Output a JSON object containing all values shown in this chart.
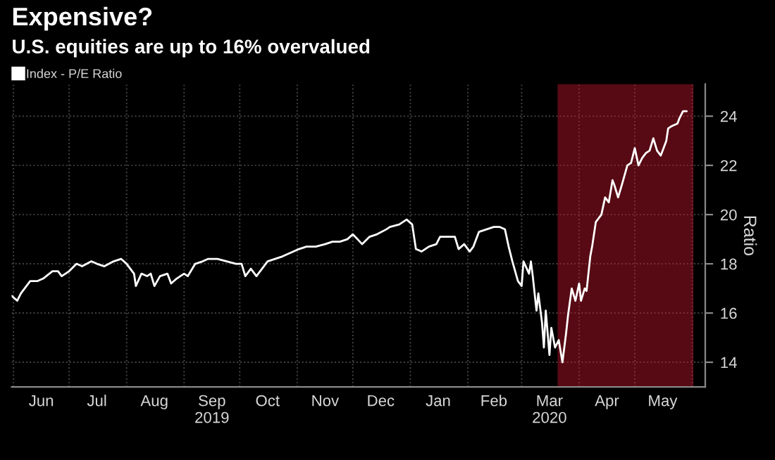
{
  "chart_data": {
    "type": "line",
    "title": "Expensive?",
    "subtitle": "U.S. equities are up to 16% overvalued",
    "ylabel": "Ratio",
    "x": [
      "2019-05-31",
      "2019-06-03",
      "2019-06-05",
      "2019-06-10",
      "2019-06-14",
      "2019-06-17",
      "2019-06-22",
      "2019-06-25",
      "2019-06-27",
      "2019-07-01",
      "2019-07-05",
      "2019-07-08",
      "2019-07-13",
      "2019-07-16",
      "2019-07-20",
      "2019-07-25",
      "2019-07-29",
      "2019-08-01",
      "2019-08-05",
      "2019-08-06",
      "2019-08-09",
      "2019-08-12",
      "2019-08-14",
      "2019-08-16",
      "2019-08-19",
      "2019-08-23",
      "2019-08-25",
      "2019-08-28",
      "2019-09-01",
      "2019-09-03",
      "2019-09-07",
      "2019-09-11",
      "2019-09-14",
      "2019-09-19",
      "2019-09-24",
      "2019-09-29",
      "2019-10-02",
      "2019-10-04",
      "2019-10-07",
      "2019-10-10",
      "2019-10-13",
      "2019-10-16",
      "2019-10-20",
      "2019-10-24",
      "2019-10-27",
      "2019-11-02",
      "2019-11-06",
      "2019-11-11",
      "2019-11-16",
      "2019-11-20",
      "2019-11-24",
      "2019-11-28",
      "2019-12-01",
      "2019-12-06",
      "2019-12-10",
      "2019-12-14",
      "2019-12-19",
      "2019-12-21",
      "2019-12-26",
      "2019-12-30",
      "2020-01-02",
      "2020-01-04",
      "2020-01-07",
      "2020-01-11",
      "2020-01-15",
      "2020-01-17",
      "2020-01-21",
      "2020-01-25",
      "2020-01-27",
      "2020-01-30",
      "2020-02-02",
      "2020-02-04",
      "2020-02-07",
      "2020-02-11",
      "2020-02-15",
      "2020-02-18",
      "2020-02-21",
      "2020-02-23",
      "2020-02-25",
      "2020-02-28",
      "2020-03-01",
      "2020-03-02",
      "2020-03-05",
      "2020-03-06",
      "2020-03-07",
      "2020-03-09",
      "2020-03-10",
      "2020-03-12",
      "2020-03-13",
      "2020-03-14",
      "2020-03-16",
      "2020-03-17",
      "2020-03-19",
      "2020-03-21",
      "2020-03-23",
      "2020-03-25",
      "2020-03-26",
      "2020-03-28",
      "2020-03-30",
      "2020-04-01",
      "2020-04-02",
      "2020-04-04",
      "2020-04-05",
      "2020-04-07",
      "2020-04-08",
      "2020-04-10",
      "2020-04-13",
      "2020-04-15",
      "2020-04-17",
      "2020-04-19",
      "2020-04-20",
      "2020-04-22",
      "2020-04-24",
      "2020-04-27",
      "2020-04-29",
      "2020-05-01",
      "2020-05-03",
      "2020-05-05",
      "2020-05-07",
      "2020-05-09",
      "2020-05-11",
      "2020-05-13",
      "2020-05-15",
      "2020-05-18",
      "2020-05-19",
      "2020-05-21",
      "2020-05-24",
      "2020-05-25",
      "2020-05-27",
      "2020-05-29"
    ],
    "series": [
      {
        "name": "Index - P/E Ratio",
        "color": "#ffffff",
        "values": [
          16.7,
          16.5,
          16.8,
          17.3,
          17.3,
          17.4,
          17.7,
          17.7,
          17.5,
          17.7,
          18.0,
          17.9,
          18.1,
          18.0,
          17.9,
          18.1,
          18.2,
          18.0,
          17.6,
          17.1,
          17.6,
          17.5,
          17.6,
          17.1,
          17.5,
          17.6,
          17.2,
          17.4,
          17.6,
          17.5,
          18.0,
          18.1,
          18.2,
          18.2,
          18.1,
          18.0,
          18.0,
          17.5,
          17.8,
          17.5,
          17.8,
          18.1,
          18.2,
          18.3,
          18.4,
          18.6,
          18.7,
          18.7,
          18.8,
          18.9,
          18.9,
          19.0,
          19.2,
          18.8,
          19.1,
          19.2,
          19.4,
          19.5,
          19.6,
          19.8,
          19.6,
          18.6,
          18.5,
          18.7,
          18.8,
          19.1,
          19.1,
          19.1,
          18.6,
          18.8,
          18.5,
          18.7,
          19.3,
          19.4,
          19.5,
          19.5,
          19.4,
          18.7,
          18.1,
          17.3,
          17.1,
          18.1,
          17.6,
          18.1,
          17.5,
          16.1,
          16.8,
          15.6,
          14.6,
          16.1,
          14.3,
          15.4,
          14.6,
          14.9,
          14.0,
          15.2,
          15.9,
          17.0,
          16.5,
          17.2,
          16.5,
          17.0,
          16.9,
          18.3,
          18.7,
          19.7,
          20.0,
          20.7,
          20.5,
          21.4,
          21.2,
          20.7,
          21.2,
          22.0,
          22.1,
          22.7,
          22.0,
          22.3,
          22.5,
          22.6,
          23.1,
          22.6,
          22.4,
          23.0,
          23.5,
          23.6,
          23.7,
          23.9,
          24.2,
          24.2
        ]
      }
    ],
    "xlim": [
      "2019-05-31",
      "2020-06-08"
    ],
    "xticks": [
      {
        "value": "2019-06-01",
        "label": null
      },
      {
        "value": "2019-06-16",
        "label": "Jun"
      },
      {
        "value": "2019-07-01",
        "label": null
      },
      {
        "value": "2019-07-16",
        "label": "Jul"
      },
      {
        "value": "2019-08-01",
        "label": null
      },
      {
        "value": "2019-08-16",
        "label": "Aug"
      },
      {
        "value": "2019-09-01",
        "label": null
      },
      {
        "value": "2019-09-16",
        "label": "Sep\n2019"
      },
      {
        "value": "2019-10-01",
        "label": null
      },
      {
        "value": "2019-10-16",
        "label": "Oct"
      },
      {
        "value": "2019-11-01",
        "label": null
      },
      {
        "value": "2019-11-16",
        "label": "Nov"
      },
      {
        "value": "2019-12-01",
        "label": null
      },
      {
        "value": "2019-12-16",
        "label": "Dec"
      },
      {
        "value": "2020-01-01",
        "label": null
      },
      {
        "value": "2020-01-16",
        "label": "Jan"
      },
      {
        "value": "2020-02-01",
        "label": null
      },
      {
        "value": "2020-02-15",
        "label": "Feb"
      },
      {
        "value": "2020-03-01",
        "label": null
      },
      {
        "value": "2020-03-16",
        "label": "Mar\n2020"
      },
      {
        "value": "2020-04-01",
        "label": null
      },
      {
        "value": "2020-04-16",
        "label": "Apr"
      },
      {
        "value": "2020-05-01",
        "label": null
      },
      {
        "value": "2020-05-16",
        "label": "May"
      },
      {
        "value": "2020-06-01",
        "label": null
      }
    ],
    "ylim": [
      13.0,
      25.3
    ],
    "yticks": [
      14,
      16,
      18,
      20,
      22,
      24
    ],
    "bands": [
      {
        "axis": "x",
        "from": "2020-03-21",
        "to": "2020-06-01",
        "color": "#c0182e"
      }
    ],
    "grid": true,
    "legend": "top left",
    "line_style": "solid",
    "marker": "none"
  }
}
